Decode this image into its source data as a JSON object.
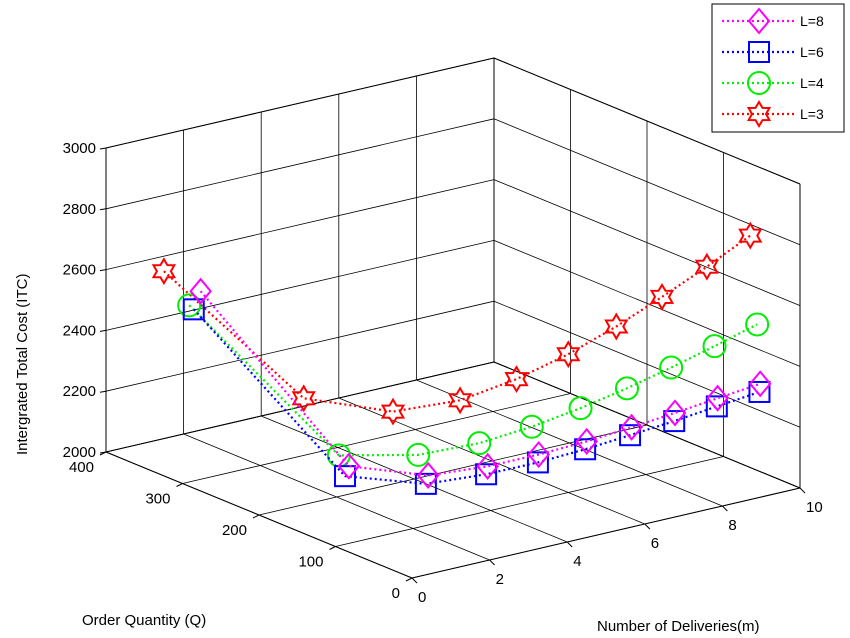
{
  "chart_data": {
    "type": "line",
    "view": "3d",
    "zlabel": "Intergrated Total Cost (ITC)",
    "xlabel": "Number of Deliveries(m)",
    "ylabel": "Order Quantity (Q)",
    "xlim": [
      0,
      10
    ],
    "ylim": [
      0,
      400
    ],
    "zlim": [
      2000,
      3000
    ],
    "x_ticks": [
      "0",
      "2",
      "4",
      "6",
      "8",
      "10"
    ],
    "y_ticks": [
      "0",
      "100",
      "200",
      "300",
      "400"
    ],
    "z_ticks": [
      "2000",
      "2200",
      "2400",
      "2600",
      "2800",
      "3000"
    ],
    "grid": true,
    "legend_position": "top-right",
    "series": [
      {
        "name": "L=8",
        "color": "#ff00ff",
        "marker": "diamond",
        "points": [
          [
            1,
            327,
            2575
          ],
          [
            2,
            184,
            2118
          ],
          [
            3,
            131,
            2113
          ],
          [
            4,
            104,
            2141
          ],
          [
            5,
            88,
            2167
          ],
          [
            6,
            76,
            2193
          ],
          [
            7,
            68,
            2218
          ],
          [
            8,
            62,
            2242
          ],
          [
            9,
            57,
            2266
          ],
          [
            10,
            52,
            2289
          ]
        ]
      },
      {
        "name": "L=6",
        "color": "#0000ff",
        "marker": "square",
        "points": [
          [
            1,
            336,
            2506
          ],
          [
            2,
            189,
            2080
          ],
          [
            3,
            134,
            2082
          ],
          [
            4,
            106,
            2113
          ],
          [
            5,
            89,
            2140
          ],
          [
            6,
            78,
            2165
          ],
          [
            7,
            70,
            2190
          ],
          [
            8,
            63,
            2214
          ],
          [
            9,
            58,
            2238
          ],
          [
            10,
            53,
            2261
          ]
        ]
      },
      {
        "name": "L=4",
        "color": "#00ee00",
        "marker": "circle",
        "points": [
          [
            1,
            342,
            2513
          ],
          [
            2,
            197,
            2140
          ],
          [
            3,
            144,
            2167
          ],
          [
            4,
            115,
            2206
          ],
          [
            5,
            97,
            2249
          ],
          [
            6,
            84,
            2294
          ],
          [
            7,
            74,
            2340
          ],
          [
            8,
            67,
            2386
          ],
          [
            9,
            61,
            2433
          ],
          [
            10,
            56,
            2480
          ]
        ]
      },
      {
        "name": "L=3",
        "color": "#ff0000",
        "marker": "hexagram",
        "points": [
          [
            1,
            375,
            2591
          ],
          [
            2,
            243,
            2280
          ],
          [
            3,
            177,
            2275
          ],
          [
            4,
            140,
            2321
          ],
          [
            5,
            117,
            2385
          ],
          [
            6,
            100,
            2455
          ],
          [
            7,
            88,
            2529
          ],
          [
            8,
            79,
            2606
          ],
          [
            9,
            71,
            2684
          ],
          [
            10,
            65,
            2763
          ]
        ]
      }
    ]
  }
}
